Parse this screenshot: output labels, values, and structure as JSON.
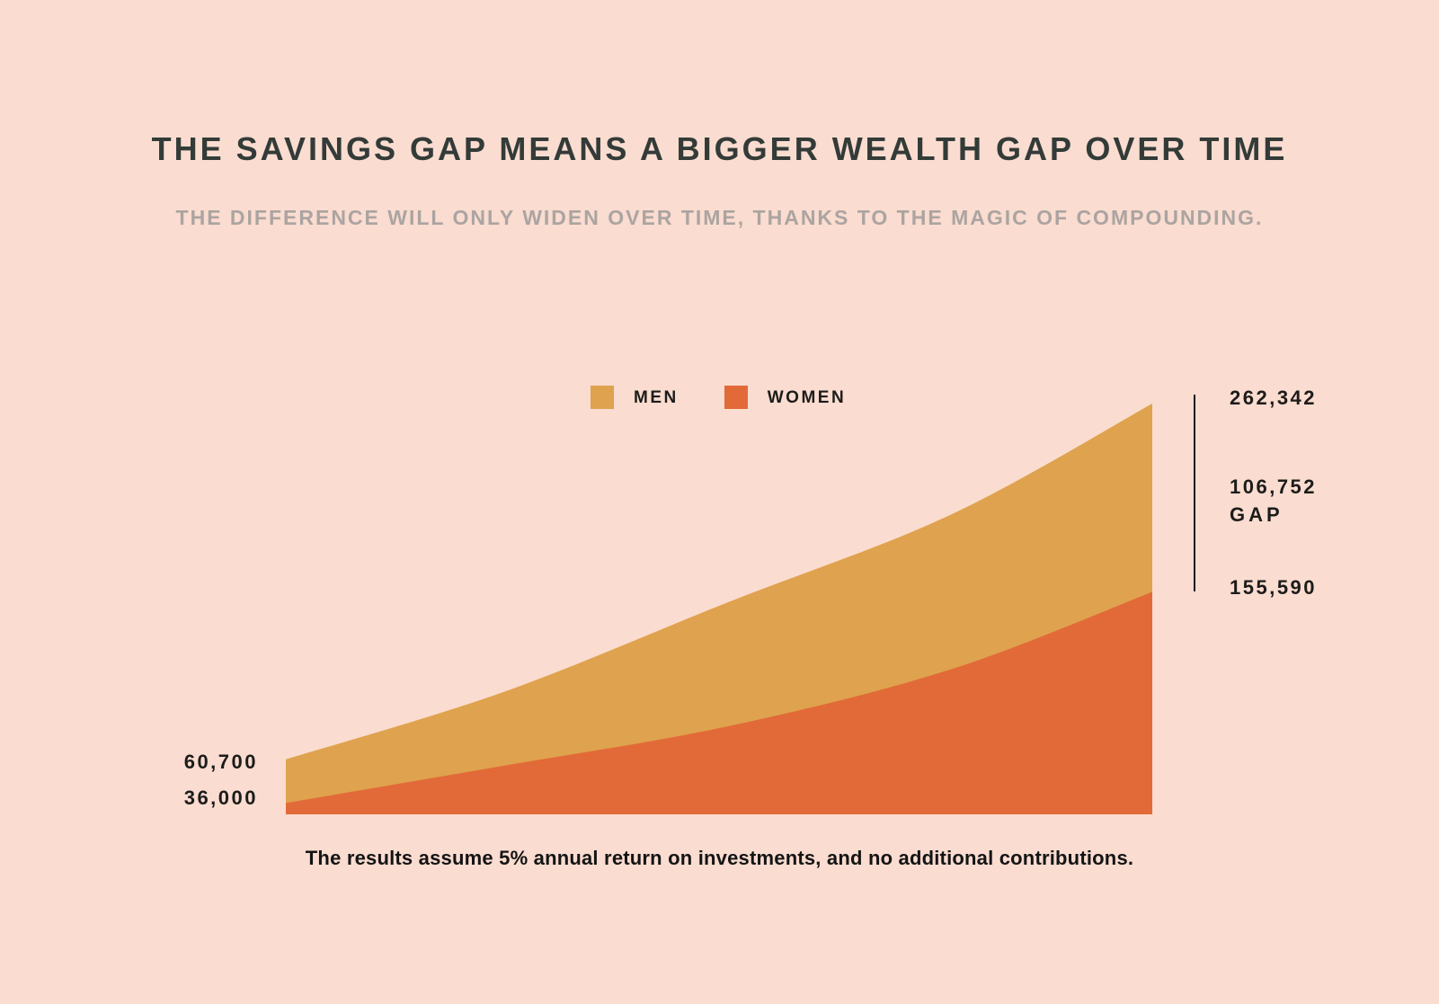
{
  "colors": {
    "background": "#FADCD0",
    "title": "#333B38",
    "subtitle": "#ABA4A1",
    "label_text": "#1C1C1A",
    "bracket_line": "#1A1A1A",
    "men": "#DFA24E",
    "women": "#E26A38"
  },
  "header": {
    "title": "THE SAVINGS GAP MEANS A BIGGER WEALTH GAP OVER TIME",
    "subtitle": "THE DIFFERENCE WILL ONLY WIDEN OVER TIME, THANKS TO THE MAGIC OF COMPOUNDING."
  },
  "legend": {
    "items": [
      {
        "label": "MEN",
        "color": "#DFA24E"
      },
      {
        "label": "WOMEN",
        "color": "#E26A38"
      }
    ]
  },
  "chart_data": {
    "type": "area",
    "title": "THE SAVINGS GAP MEANS A BIGGER WEALTH GAP OVER TIME",
    "xlabel": "",
    "ylabel": "",
    "x_unit": "years",
    "years": 30,
    "growth_rate_percent": 5,
    "grid": false,
    "legend_position": "top-center",
    "ylim": [
      29600,
      262342
    ],
    "series": [
      {
        "name": "MEN",
        "color": "#DFA24E",
        "start_value": 60700,
        "end_value": 262342,
        "values": [
          60700,
          63735,
          66922,
          70268,
          73781,
          77470,
          81344,
          85411,
          89681,
          94165,
          98874,
          103817,
          109008,
          114459,
          120182,
          126191,
          132500,
          139125,
          146082,
          153386,
          161055,
          169108,
          177563,
          186441,
          195763,
          205551,
          215829,
          226620,
          237951,
          249849,
          262342
        ]
      },
      {
        "name": "WOMEN",
        "color": "#E26A38",
        "start_value": 36000,
        "end_value": 155590,
        "values": [
          36000,
          37800,
          39690,
          41675,
          43758,
          45946,
          48243,
          50655,
          53188,
          55848,
          58640,
          61572,
          64651,
          67883,
          71277,
          74841,
          78583,
          82512,
          86638,
          90970,
          95518,
          100294,
          105309,
          110574,
          116103,
          121908,
          128003,
          134404,
          141124,
          148180,
          155590
        ]
      }
    ],
    "annotations": {
      "start_labels": [
        "60,700",
        "36,000"
      ],
      "end_labels": [
        "262,342",
        "155,590"
      ],
      "gap": {
        "value": "106,752",
        "word": "GAP"
      }
    }
  },
  "labels": {
    "men_start": "60,700",
    "women_start": "36,000",
    "men_end": "262,342",
    "gap_value": "106,752",
    "gap_word": "GAP",
    "women_end": "155,590"
  },
  "footnote": {
    "text": "The results assume 5% annual return on investments, and no additional contributions."
  }
}
